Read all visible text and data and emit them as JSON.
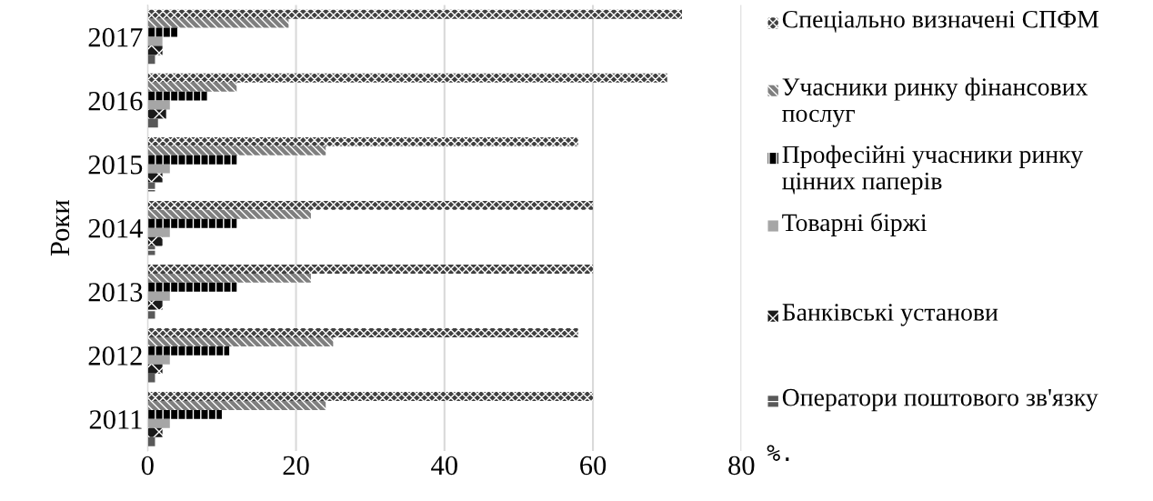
{
  "chart_data": {
    "type": "bar",
    "orientation": "horizontal",
    "ylabel": "Роки",
    "categories": [
      "2017",
      "2016",
      "2015",
      "2014",
      "2013",
      "2012",
      "2011"
    ],
    "series": [
      {
        "name": "Спеціально визначені СПФМ",
        "color": "#404040",
        "values": [
          72,
          70,
          58,
          60,
          60,
          58,
          60
        ]
      },
      {
        "name": "Учасники ринку фінансових послуг",
        "color": "#7f7f7f",
        "values": [
          19,
          12,
          24,
          22,
          22,
          25,
          24
        ]
      },
      {
        "name": "Професійні учасники ринку цінних паперів",
        "color": "#000000",
        "values": [
          4,
          8,
          12,
          12,
          12,
          11,
          10
        ]
      },
      {
        "name": "Товарні біржі",
        "color": "#a6a6a6",
        "values": [
          2,
          3,
          3,
          3,
          3,
          3,
          3
        ]
      },
      {
        "name": "Банківські установи",
        "color": "#1a1a1a",
        "values": [
          2,
          2.5,
          2,
          2,
          2,
          2,
          2
        ]
      },
      {
        "name": "Оператори поштового зв'язку",
        "color": "#595959",
        "values": [
          1,
          1.4,
          1,
          1,
          1,
          1,
          1
        ]
      }
    ],
    "xlim": [
      0,
      80
    ],
    "xticks": [
      0,
      20,
      40,
      60,
      80
    ],
    "grid": "x",
    "legend": "right",
    "annotations": [
      "%."
    ]
  }
}
